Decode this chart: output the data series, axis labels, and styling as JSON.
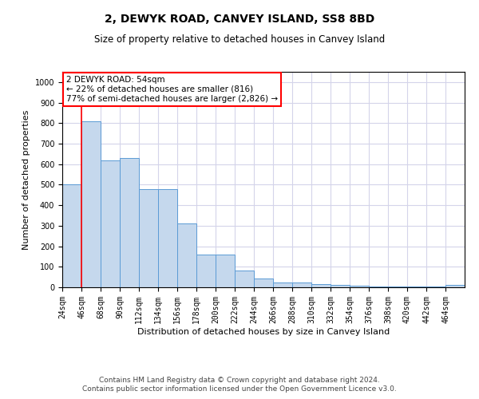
{
  "title": "2, DEWYK ROAD, CANVEY ISLAND, SS8 8BD",
  "subtitle": "Size of property relative to detached houses in Canvey Island",
  "xlabel": "Distribution of detached houses by size in Canvey Island",
  "ylabel": "Number of detached properties",
  "footer1": "Contains HM Land Registry data © Crown copyright and database right 2024.",
  "footer2": "Contains public sector information licensed under the Open Government Licence v3.0.",
  "annotation_line1": "2 DEWYK ROAD: 54sqm",
  "annotation_line2": "← 22% of detached houses are smaller (816)",
  "annotation_line3": "77% of semi-detached houses are larger (2,826) →",
  "bar_color": "#c5d8ed",
  "bar_edge_color": "#5b9bd5",
  "categories": [
    "24sqm",
    "46sqm",
    "68sqm",
    "90sqm",
    "112sqm",
    "134sqm",
    "156sqm",
    "178sqm",
    "200sqm",
    "222sqm",
    "244sqm",
    "266sqm",
    "288sqm",
    "310sqm",
    "332sqm",
    "354sqm",
    "376sqm",
    "398sqm",
    "420sqm",
    "442sqm",
    "464sqm"
  ],
  "bin_edges": [
    13,
    35,
    57,
    79,
    101,
    123,
    145,
    167,
    189,
    211,
    233,
    255,
    277,
    299,
    321,
    343,
    365,
    387,
    409,
    431,
    453,
    475
  ],
  "values": [
    500,
    810,
    620,
    630,
    480,
    480,
    310,
    160,
    160,
    80,
    42,
    22,
    22,
    15,
    12,
    8,
    5,
    3,
    3,
    2,
    12
  ],
  "red_line_bin_index": 1,
  "ylim": [
    0,
    1050
  ],
  "yticks": [
    0,
    100,
    200,
    300,
    400,
    500,
    600,
    700,
    800,
    900,
    1000
  ],
  "grid_color": "#d4d4ea",
  "title_fontsize": 10,
  "subtitle_fontsize": 8.5,
  "ylabel_fontsize": 8,
  "xlabel_fontsize": 8,
  "tick_fontsize": 7,
  "footer_fontsize": 6.5,
  "annotation_fontsize": 7.5
}
